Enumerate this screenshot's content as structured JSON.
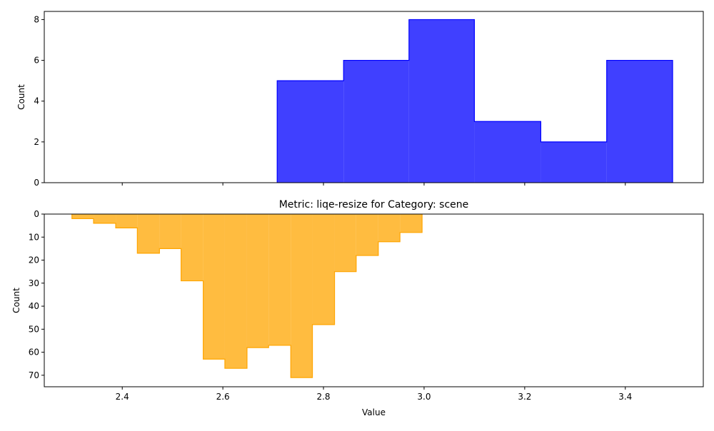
{
  "chart_data": [
    {
      "type": "histogram",
      "ylabel": "Count",
      "xlim": [
        2.245,
        3.555
      ],
      "ylim": [
        0,
        8.4
      ],
      "yticks": [
        0,
        2,
        4,
        6,
        8
      ],
      "x_ticklabels_shown": false,
      "fill_color": "#0000ff",
      "fill_opacity": 0.75,
      "bin_edges": [
        2.708,
        2.84,
        2.97,
        3.1,
        3.232,
        3.363,
        3.494
      ],
      "counts": [
        5,
        6,
        8,
        3,
        2,
        6
      ]
    },
    {
      "type": "histogram",
      "title": "Metric: liqe-resize for Category: scene",
      "xlabel": "Value",
      "ylabel": "Count",
      "y_inverted": true,
      "xlim": [
        2.245,
        3.555
      ],
      "ylim": [
        0,
        75
      ],
      "xticks": [
        2.4,
        2.6,
        2.8,
        3.0,
        3.2,
        3.4
      ],
      "xticklabels": [
        "2.4",
        "2.6",
        "2.8",
        "3.0",
        "3.2",
        "3.4"
      ],
      "yticks": [
        0,
        10,
        20,
        30,
        40,
        50,
        60,
        70
      ],
      "fill_color": "#ffa500",
      "fill_opacity": 0.75,
      "bin_edges": [
        2.3,
        2.343,
        2.387,
        2.43,
        2.474,
        2.517,
        2.561,
        2.604,
        2.648,
        2.691,
        2.735,
        2.778,
        2.822,
        2.865,
        2.909,
        2.952,
        2.996
      ],
      "counts": [
        2,
        4,
        6,
        17,
        15,
        29,
        63,
        67,
        58,
        57,
        71,
        48,
        25,
        18,
        12,
        8
      ]
    }
  ]
}
